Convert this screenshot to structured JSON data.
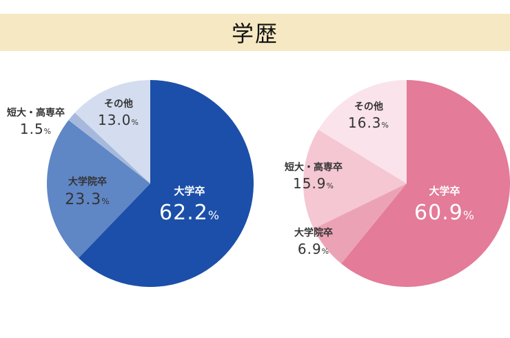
{
  "title": "学歴",
  "chart_data": [
    {
      "type": "pie",
      "start": "top",
      "direction": "clockwise",
      "slices": [
        {
          "label": "大学卒",
          "value": 62.2,
          "value_text": "62.2",
          "color": "#1c4fa9"
        },
        {
          "label": "大学院卒",
          "value": 23.3,
          "value_text": "23.3",
          "color": "#5f86c5"
        },
        {
          "label": "短大・高専卒",
          "value": 1.5,
          "value_text": "1.5",
          "color": "#a6b9dd"
        },
        {
          "label": "その他",
          "value": 13.0,
          "value_text": "13.0",
          "color": "#d4ddef"
        }
      ]
    },
    {
      "type": "pie",
      "start": "top",
      "direction": "clockwise",
      "slices": [
        {
          "label": "大学卒",
          "value": 60.9,
          "value_text": "60.9",
          "color": "#e37b99"
        },
        {
          "label": "大学院卒",
          "value": 6.9,
          "value_text": "6.9",
          "color": "#eca2b5"
        },
        {
          "label": "短大・高専卒",
          "value": 15.9,
          "value_text": "15.9",
          "color": "#f4c7d3"
        },
        {
          "label": "その他",
          "value": 16.3,
          "value_text": "16.3",
          "color": "#fae3ea"
        }
      ]
    }
  ],
  "unit": "%"
}
